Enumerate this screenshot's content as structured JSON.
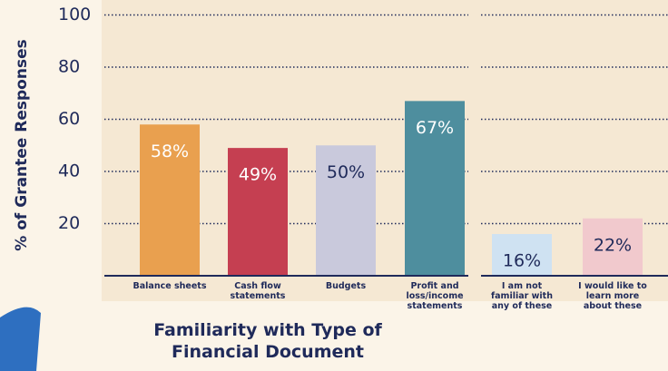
{
  "chart_data": {
    "type": "bar",
    "y_label": "% of Grantee Responses",
    "x_label": "Familiarity with Type of Financial Document",
    "categories": [
      "Balance sheets",
      "Cash flow statements",
      "Budgets",
      "Profit and loss/income statements",
      "I am not familiar with any of these",
      "I would like to learn more about these"
    ],
    "values": [
      58,
      49,
      50,
      67,
      16,
      22
    ],
    "value_labels": [
      "58%",
      "49%",
      "50%",
      "67%",
      "16%",
      "22%"
    ],
    "colors": [
      "#e9a04f",
      "#c53f51",
      "#c9c9dc",
      "#4e8e9e",
      "#cfe2f2",
      "#f1c9cd"
    ],
    "ylim": [
      0,
      100
    ],
    "yticks": [
      20,
      40,
      60,
      80,
      100
    ],
    "grid": true
  }
}
